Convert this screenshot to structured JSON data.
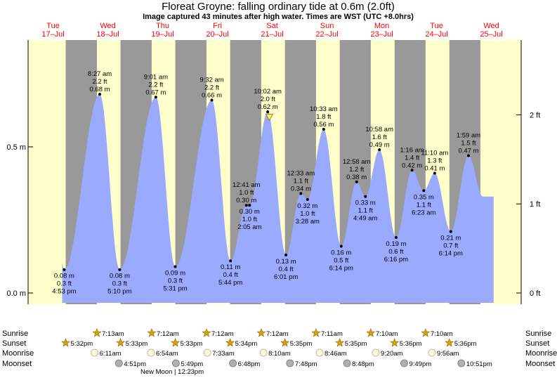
{
  "title": "Floreat Groyne: falling  ordinary tide at 0.6m (2.0ft)",
  "subtitle": "Image captured 43 minutes after high water. Times are WST (UTC +8.0hrs)",
  "colors": {
    "day": "#ffffcc",
    "night": "#999999",
    "tide": "#99aaff",
    "day_label": "#ff0000",
    "now_marker": "#ffff33"
  },
  "days": [
    {
      "dow": "Tue",
      "date": "17–Jul"
    },
    {
      "dow": "Wed",
      "date": "18–Jul"
    },
    {
      "dow": "Thu",
      "date": "19–Jul"
    },
    {
      "dow": "Fri",
      "date": "20–Jul"
    },
    {
      "dow": "Sat",
      "date": "21–Jul"
    },
    {
      "dow": "Sun",
      "date": "22–Jul"
    },
    {
      "dow": "Mon",
      "date": "23–Jul"
    },
    {
      "dow": "Tue",
      "date": "24–Jul"
    },
    {
      "dow": "Wed",
      "date": "25–Jul"
    }
  ],
  "y_ticks_m": [
    {
      "value": 0.0,
      "label": "0.0 m"
    },
    {
      "value": 0.5,
      "label": "0.5 m"
    }
  ],
  "y_ticks_ft": [
    {
      "value": 0,
      "label": "0 ft"
    },
    {
      "value": 1,
      "label": "1 ft"
    },
    {
      "value": 2,
      "label": "2 ft"
    }
  ],
  "chart_data": {
    "type": "area",
    "title": "Floreat Groyne: falling  ordinary tide at 0.6m (2.0ft)",
    "subtitle": "Image captured 43 minutes after high water. Times are WST (UTC +8.0hrs)",
    "x_unit": "hours from 00:00 Tue 17-Jul (WST)",
    "xlim": [
      0,
      192
    ],
    "ylim_m": [
      -0.035,
      0.84
    ],
    "tides": [
      {
        "t": 16.883,
        "kind": "low",
        "time": "4:53 pm",
        "ft": "0.3 ft",
        "m": 0.08,
        "m_label": "0.08 m"
      },
      {
        "t": 32.45,
        "kind": "high",
        "time": "8:27 am",
        "ft": "2.2 ft",
        "m": 0.68,
        "m_label": "0.68 m"
      },
      {
        "t": 41.167,
        "kind": "low",
        "time": "5:10 pm",
        "ft": "0.3 ft",
        "m": 0.08,
        "m_label": "0.08 m"
      },
      {
        "t": 57.017,
        "kind": "high",
        "time": "9:01 am",
        "ft": "2.2 ft",
        "m": 0.67,
        "m_label": "0.67 m"
      },
      {
        "t": 65.517,
        "kind": "low",
        "time": "5:31 pm",
        "ft": "0.3 ft",
        "m": 0.09,
        "m_label": "0.09 m"
      },
      {
        "t": 81.533,
        "kind": "high",
        "time": "9:32 am",
        "ft": "2.2 ft",
        "m": 0.66,
        "m_label": "0.66 m"
      },
      {
        "t": 89.733,
        "kind": "low",
        "time": "5:44 pm",
        "ft": "0.4 ft",
        "m": 0.11,
        "m_label": "0.11 m"
      },
      {
        "t": 96.683,
        "kind": "high",
        "time": "12:41 am",
        "ft": "1.0 ft",
        "m": 0.3,
        "m_label": "0.30 m"
      },
      {
        "t": 98.083,
        "kind": "low",
        "time": "2:05 am",
        "ft": "1.0 ft",
        "m": 0.3,
        "m_label": "0.30 m"
      },
      {
        "t": 106.033,
        "kind": "high",
        "time": "10:02 am",
        "ft": "2.0 ft",
        "m": 0.62,
        "m_label": "0.62 m"
      },
      {
        "t": 114.017,
        "kind": "low",
        "time": "6:01 pm",
        "ft": "0.4 ft",
        "m": 0.13,
        "m_label": "0.13 m"
      },
      {
        "t": 120.55,
        "kind": "high",
        "time": "12:33 am",
        "ft": "1.1 ft",
        "m": 0.34,
        "m_label": "0.34 m"
      },
      {
        "t": 123.467,
        "kind": "low",
        "time": "3:28 am",
        "ft": "1.0 ft",
        "m": 0.32,
        "m_label": "0.32 m"
      },
      {
        "t": 130.55,
        "kind": "high",
        "time": "10:33 am",
        "ft": "1.8 ft",
        "m": 0.56,
        "m_label": "0.56 m"
      },
      {
        "t": 138.233,
        "kind": "low",
        "time": "6:14 pm",
        "ft": "0.5 ft",
        "m": 0.16,
        "m_label": "0.16 m"
      },
      {
        "t": 144.967,
        "kind": "high",
        "time": "12:58 am",
        "ft": "1.2 ft",
        "m": 0.38,
        "m_label": "0.38 m"
      },
      {
        "t": 148.817,
        "kind": "low",
        "time": "4:49 am",
        "ft": "1.1 ft",
        "m": 0.33,
        "m_label": "0.33 m"
      },
      {
        "t": 154.967,
        "kind": "high",
        "time": "10:58 am",
        "ft": "1.6 ft",
        "m": 0.49,
        "m_label": "0.49 m"
      },
      {
        "t": 162.267,
        "kind": "low",
        "time": "6:16 pm",
        "ft": "0.6 ft",
        "m": 0.19,
        "m_label": "0.19 m"
      },
      {
        "t": 169.267,
        "kind": "high",
        "time": "1:16 am",
        "ft": "1.4 ft",
        "m": 0.42,
        "m_label": "0.42 m"
      },
      {
        "t": 174.383,
        "kind": "low",
        "time": "6:23 am",
        "ft": "1.1 ft",
        "m": 0.35,
        "m_label": "0.35 m"
      },
      {
        "t": 179.167,
        "kind": "high",
        "time": "11:10 am",
        "ft": "1.3 ft",
        "m": 0.41,
        "m_label": "0.41 m"
      },
      {
        "t": 186.233,
        "kind": "low",
        "time": "6:14 pm",
        "ft": "0.7 ft",
        "m": 0.21,
        "m_label": "0.21 m"
      },
      {
        "t": 193.983,
        "kind": "high",
        "time": "1:59 am",
        "ft": "1.5 ft",
        "m": 0.47,
        "m_label": "0.47 m"
      }
    ],
    "now_t": 106.75,
    "now_m": 0.6
  },
  "sun_moon": {
    "row_labels": {
      "sunrise": "Sunrise",
      "sunset": "Sunset",
      "moonrise": "Moonrise",
      "moonset": "Moonset"
    },
    "sunrise": [
      {
        "t": 31.217,
        "label": "7:13am"
      },
      {
        "t": 55.2,
        "label": "7:12am"
      },
      {
        "t": 79.2,
        "label": "7:12am"
      },
      {
        "t": 103.2,
        "label": "7:12am"
      },
      {
        "t": 127.183,
        "label": "7:11am"
      },
      {
        "t": 151.167,
        "label": "7:10am"
      },
      {
        "t": 175.167,
        "label": "7:10am"
      }
    ],
    "sunset": [
      {
        "t": 17.533,
        "label": "5:32pm"
      },
      {
        "t": 41.55,
        "label": "5:33pm"
      },
      {
        "t": 65.55,
        "label": "5:33pm"
      },
      {
        "t": 89.567,
        "label": "5:34pm"
      },
      {
        "t": 113.583,
        "label": "5:35pm"
      },
      {
        "t": 137.583,
        "label": "5:35pm"
      },
      {
        "t": 161.6,
        "label": "5:36pm"
      },
      {
        "t": 185.6,
        "label": "5:36pm"
      }
    ],
    "moonrise": [
      {
        "t": 30.183,
        "label": "6:11am"
      },
      {
        "t": 54.9,
        "label": "6:54am"
      },
      {
        "t": 79.55,
        "label": "7:33am"
      },
      {
        "t": 104.167,
        "label": "8:10am"
      },
      {
        "t": 128.767,
        "label": "8:46am"
      },
      {
        "t": 153.333,
        "label": "9:20am"
      },
      {
        "t": 177.933,
        "label": "9:56am"
      }
    ],
    "moonset": [
      {
        "t": 40.85,
        "label": "4:51pm"
      },
      {
        "t": 65.817,
        "label": "5:49pm"
      },
      {
        "t": 90.8,
        "label": "6:48pm"
      },
      {
        "t": 115.8,
        "label": "7:48pm"
      },
      {
        "t": 140.8,
        "label": "8:48pm"
      },
      {
        "t": 165.817,
        "label": "9:49pm"
      },
      {
        "t": 190.85,
        "label": "10:51pm"
      }
    ],
    "new_moon": "New Moon | 12:23pm"
  }
}
